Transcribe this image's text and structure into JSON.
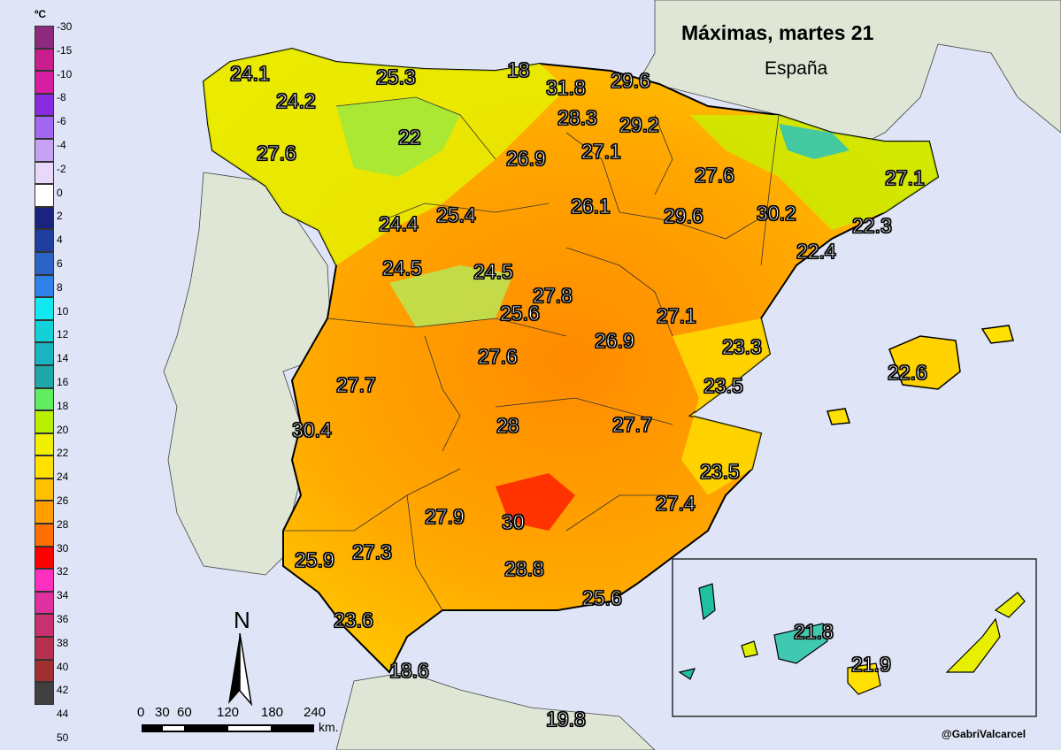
{
  "title": "Máximas, martes 21",
  "subtitle": "España",
  "credit": "@GabriValcarcel",
  "legend": {
    "unit": "ºC",
    "ticks": [
      "-30",
      "-15",
      "-10",
      "-8",
      "-6",
      "-4",
      "-2",
      "0",
      "2",
      "4",
      "6",
      "8",
      "10",
      "12",
      "14",
      "16",
      "18",
      "20",
      "22",
      "24",
      "26",
      "28",
      "30",
      "32",
      "34",
      "36",
      "38",
      "40",
      "42",
      "44",
      "50"
    ],
    "colors": [
      "#8e2a7e",
      "#c81e8e",
      "#d81ea0",
      "#8a2be2",
      "#a366ee",
      "#c8a2f2",
      "#e8d8fa",
      "#ffffff",
      "#1a237e",
      "#1f3fa0",
      "#2d63c8",
      "#2f80e8",
      "#12e8f0",
      "#14d0d8",
      "#18b4c0",
      "#20a8a8",
      "#60ee60",
      "#b8f000",
      "#f0f000",
      "#ffe000",
      "#ffc000",
      "#ffa000",
      "#ff7000",
      "#ff0000",
      "#ff30c0",
      "#e030a0",
      "#c83070",
      "#b83050",
      "#a03030",
      "#404040"
    ]
  },
  "scale": {
    "numbers": [
      "0",
      "30",
      "60",
      "120",
      "180",
      "240"
    ],
    "unit": "km."
  },
  "north": "N",
  "temperatures": [
    "24.1",
    "25.3",
    "18",
    "31.8",
    "29.6",
    "24.2",
    "28.3",
    "29.2",
    "22",
    "27.6",
    "26.9",
    "27.1",
    "27.6",
    "27.1",
    "26.1",
    "24.4",
    "25.4",
    "29.6",
    "30.2",
    "22.3",
    "22.4",
    "24.5",
    "24.5",
    "27.8",
    "25.6",
    "27.1",
    "26.9",
    "23.3",
    "22.6",
    "27.6",
    "27.7",
    "23.5",
    "30.4",
    "28",
    "27.7",
    "23.5",
    "30",
    "27.9",
    "27.4",
    "25.9",
    "27.3",
    "28.8",
    "25.6",
    "23.6",
    "18.6",
    "19.8",
    "21.8",
    "21.9"
  ]
}
